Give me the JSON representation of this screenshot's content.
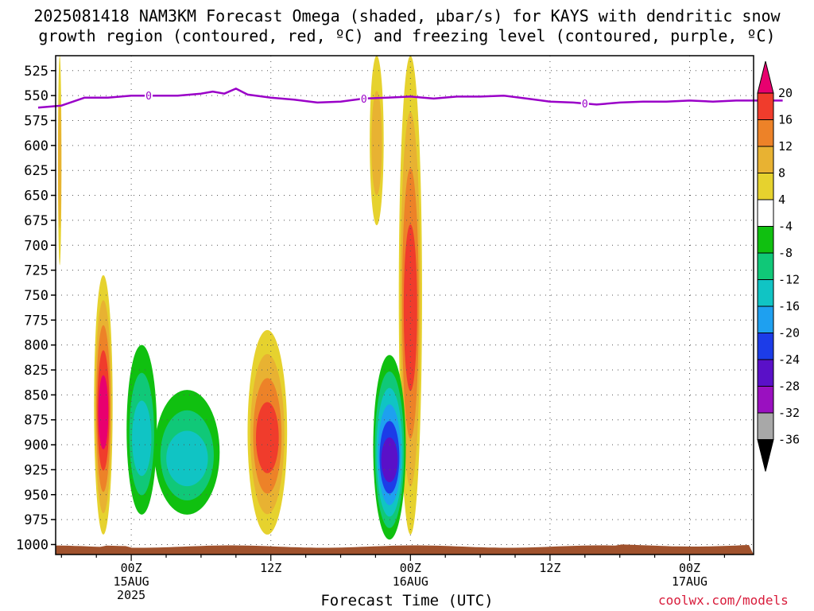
{
  "title_line1": "2025081418 NAM3KM Forecast Omega (shaded, µbar/s) for KAYS with dendritic snow",
  "title_line2": "growth region (contoured, red, ºC) and freezing level (contoured, purple, ºC)",
  "credit": "coolwx.com/models",
  "chart_data": {
    "type": "heatmap",
    "title": "2025081418 NAM3KM Forecast Omega (shaded, µbar/s) for KAYS with dendritic snow growth region (contoured, red, ºC) and freezing level (contoured, purple, ºC)",
    "xlabel": "Forecast Time (UTC)",
    "ylabel": "",
    "ylim": [
      1010,
      510
    ],
    "y_ticks": [
      "525",
      "550",
      "575",
      "600",
      "625",
      "650",
      "675",
      "700",
      "725",
      "750",
      "775",
      "800",
      "825",
      "850",
      "875",
      "900",
      "925",
      "950",
      "975",
      "1000"
    ],
    "x_ticks": [
      {
        "label": "00Z",
        "sub": [
          "15AUG",
          "2025"
        ]
      },
      {
        "label": "12Z",
        "sub": []
      },
      {
        "label": "00Z",
        "sub": [
          "16AUG"
        ]
      },
      {
        "label": "12Z",
        "sub": []
      },
      {
        "label": "00Z",
        "sub": [
          "17AUG"
        ]
      }
    ],
    "colorbar": {
      "labels": [
        "20",
        "16",
        "12",
        "8",
        "4",
        "-4",
        "-8",
        "-12",
        "-16",
        "-20",
        "-24",
        "-28",
        "-32",
        "-36"
      ],
      "colors": [
        "#e8006f",
        "#f03c2c",
        "#ed8228",
        "#e8b232",
        "#e6d22e",
        "#ffffff",
        "#10c010",
        "#10c878",
        "#10c4c4",
        "#1ea0f0",
        "#1c3ce8",
        "#5a10c8",
        "#9a10c0",
        "#a8a8a8",
        "#000000"
      ]
    },
    "freezing_level": {
      "label": "0",
      "points": [
        [
          -8,
          562
        ],
        [
          -6,
          560
        ],
        [
          -4,
          552
        ],
        [
          -2,
          552
        ],
        [
          0,
          550
        ],
        [
          2,
          550
        ],
        [
          4,
          550
        ],
        [
          6,
          548
        ],
        [
          7,
          546
        ],
        [
          8,
          548
        ],
        [
          9,
          543
        ],
        [
          10,
          549
        ],
        [
          12,
          552
        ],
        [
          14,
          554
        ],
        [
          16,
          557
        ],
        [
          18,
          556
        ],
        [
          20,
          553
        ],
        [
          22,
          552
        ],
        [
          24,
          551
        ],
        [
          26,
          553
        ],
        [
          28,
          551
        ],
        [
          30,
          551
        ],
        [
          32,
          550
        ],
        [
          34,
          553
        ],
        [
          36,
          556
        ],
        [
          38,
          557
        ],
        [
          40,
          559
        ],
        [
          42,
          557
        ],
        [
          44,
          556
        ],
        [
          46,
          556
        ],
        [
          48,
          555
        ],
        [
          50,
          556
        ],
        [
          52,
          555
        ],
        [
          54,
          555
        ],
        [
          56,
          555
        ]
      ]
    },
    "omega_regions": [
      {
        "time_range": [
          -3.2,
          -1.6
        ],
        "pressure_range": [
          730,
          990
        ],
        "value_min": 4,
        "value_max": 20,
        "sign": "positive"
      },
      {
        "time_range": [
          -0.4,
          2.2
        ],
        "pressure_range": [
          800,
          970
        ],
        "value_min": -12,
        "value_max": -4,
        "sign": "negative"
      },
      {
        "time_range": [
          10.0,
          13.4
        ],
        "pressure_range": [
          785,
          990
        ],
        "value_min": 4,
        "value_max": 16,
        "sign": "positive"
      },
      {
        "time_range": [
          2.0,
          7.6
        ],
        "pressure_range": [
          845,
          970
        ],
        "value_min": -12,
        "value_max": -4,
        "sign": "negative"
      },
      {
        "time_range": [
          20.5,
          21.7
        ],
        "pressure_range": [
          510,
          680
        ],
        "value_min": 4,
        "value_max": 8,
        "sign": "positive"
      },
      {
        "time_range": [
          23.0,
          25.0
        ],
        "pressure_range": [
          510,
          990
        ],
        "value_min": 4,
        "value_max": 16,
        "sign": "positive"
      },
      {
        "time_range": [
          20.8,
          23.6
        ],
        "pressure_range": [
          810,
          995
        ],
        "value_min": -24,
        "value_max": -4,
        "sign": "negative"
      },
      {
        "time_range": [
          -6.3,
          -6.0
        ],
        "pressure_range": [
          510,
          720
        ],
        "value_min": 4,
        "value_max": 8,
        "sign": "positive"
      }
    ]
  }
}
